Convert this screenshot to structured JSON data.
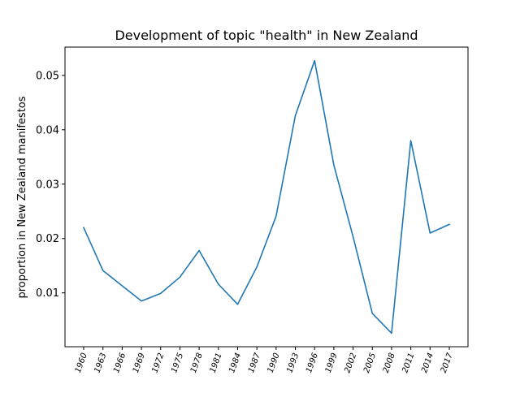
{
  "chart_data": {
    "type": "line",
    "title": "Development of topic \"health\" in New Zealand",
    "xlabel": "",
    "ylabel": "proportion in New Zealand manifestos",
    "categories": [
      "1960",
      "1963",
      "1966",
      "1969",
      "1972",
      "1975",
      "1978",
      "1981",
      "1984",
      "1987",
      "1990",
      "1993",
      "1996",
      "1999",
      "2002",
      "2005",
      "2008",
      "2011",
      "2014",
      "2017"
    ],
    "series": [
      {
        "color": "#1f77b4",
        "values": [
          0.022,
          0.0141,
          0.0113,
          0.0085,
          0.0099,
          0.0129,
          0.0178,
          0.0116,
          0.0079,
          0.0148,
          0.0241,
          0.0426,
          0.0527,
          0.0335,
          0.0203,
          0.0062,
          0.0026,
          0.038,
          0.021,
          0.0226
        ]
      }
    ],
    "yticks": [
      0.01,
      0.02,
      0.03,
      0.04,
      0.05
    ],
    "ytick_labels": [
      "0.01",
      "0.02",
      "0.03",
      "0.04",
      "0.05"
    ],
    "ylim": [
      0.0001,
      0.0552
    ],
    "grid": false,
    "legend": "none"
  }
}
